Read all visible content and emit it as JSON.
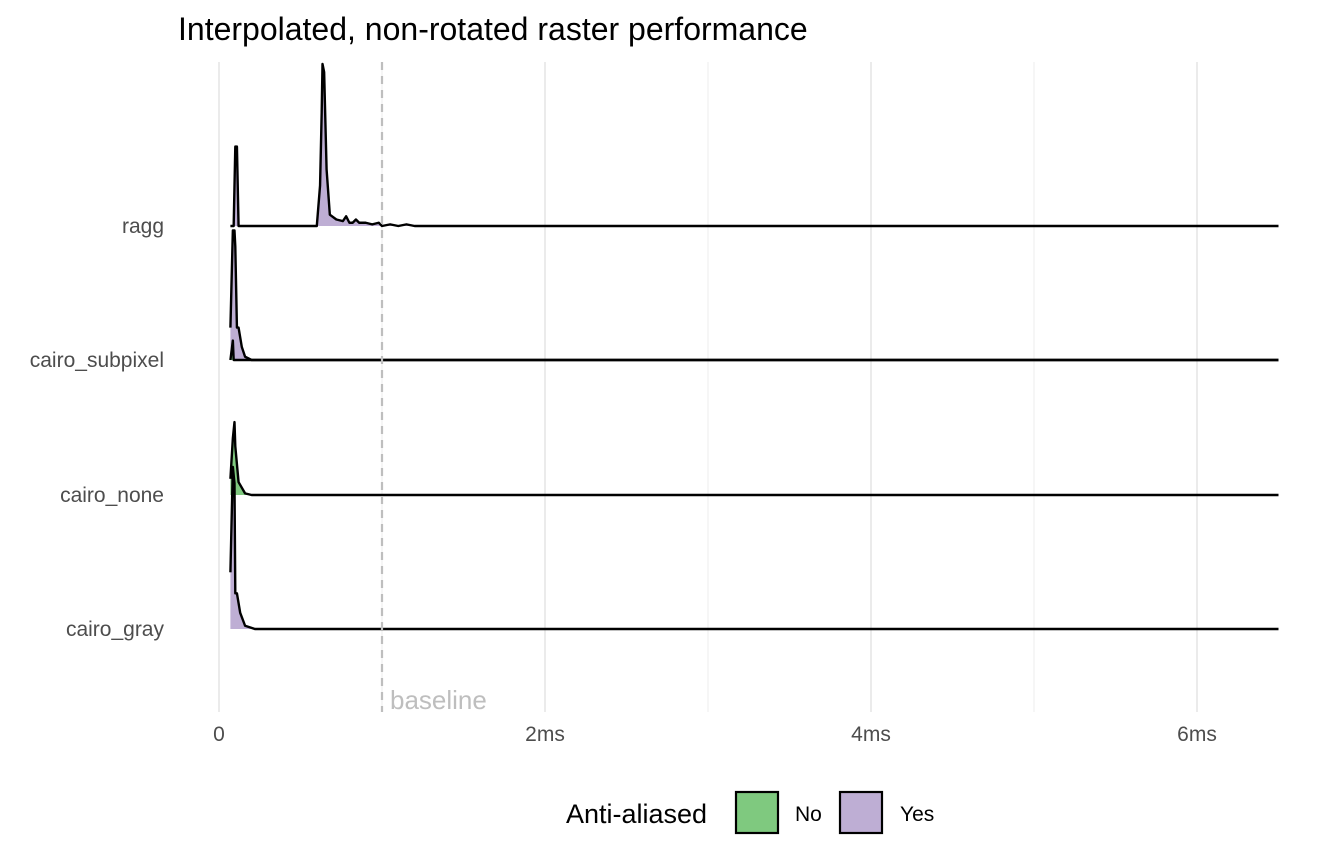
{
  "chart_data": {
    "type": "ridgeline",
    "title": "Interpolated, non-rotated raster performance",
    "xlabel": "",
    "ylabel": "",
    "x_unit": "ms",
    "xlim": [
      0,
      6.5
    ],
    "x_ticks": [
      {
        "value": 0,
        "label": "0"
      },
      {
        "value": 2,
        "label": "2ms"
      },
      {
        "value": 4,
        "label": "4ms"
      },
      {
        "value": 6,
        "label": "6ms"
      }
    ],
    "categories": [
      "cairo_gray",
      "cairo_none",
      "cairo_subpixel",
      "ragg"
    ],
    "reference_line": {
      "x": 1.0,
      "label": "baseline",
      "style": "dashed",
      "color": "#bebebe"
    },
    "legend": {
      "title": "Anti-aliased",
      "position": "bottom",
      "entries": [
        {
          "label": "No",
          "color": "#7fc97f"
        },
        {
          "label": "Yes",
          "color": "#beaed4"
        }
      ]
    },
    "series": [
      {
        "category": "ragg",
        "fill": "Yes",
        "density": [
          [
            0.07,
            0
          ],
          [
            0.09,
            0
          ],
          [
            0.1,
            0.49
          ],
          [
            0.11,
            0.49
          ],
          [
            0.12,
            0
          ],
          [
            0.6,
            0
          ],
          [
            0.62,
            0.25
          ],
          [
            0.63,
            0.7
          ],
          [
            0.635,
            1.0
          ],
          [
            0.645,
            0.95
          ],
          [
            0.66,
            0.35
          ],
          [
            0.68,
            0.07
          ],
          [
            0.72,
            0.04
          ],
          [
            0.76,
            0.03
          ],
          [
            0.78,
            0.06
          ],
          [
            0.8,
            0.02
          ],
          [
            0.82,
            0.02
          ],
          [
            0.84,
            0.04
          ],
          [
            0.86,
            0.02
          ],
          [
            0.9,
            0.02
          ],
          [
            0.94,
            0.01
          ],
          [
            0.98,
            0.02
          ],
          [
            1.0,
            0.0
          ],
          [
            1.05,
            0.01
          ],
          [
            1.1,
            0.0
          ],
          [
            1.15,
            0.01
          ],
          [
            1.2,
            0
          ],
          [
            6.5,
            0
          ]
        ]
      },
      {
        "category": "cairo_subpixel",
        "fill": "Yes",
        "density": [
          [
            0.07,
            0.2
          ],
          [
            0.085,
            0.8
          ],
          [
            0.095,
            0.8
          ],
          [
            0.1,
            0.7
          ],
          [
            0.11,
            0.2
          ],
          [
            0.12,
            0.2
          ],
          [
            0.14,
            0.08
          ],
          [
            0.16,
            0.02
          ],
          [
            0.2,
            0
          ],
          [
            6.5,
            0
          ]
        ]
      },
      {
        "category": "cairo_subpixel",
        "fill": "No",
        "density": [
          [
            0.07,
            0
          ],
          [
            0.085,
            0.12
          ],
          [
            0.09,
            0.0
          ],
          [
            0.1,
            0
          ],
          [
            6.5,
            0
          ]
        ]
      },
      {
        "category": "cairo_none",
        "fill": "No",
        "density": [
          [
            0.07,
            0.1
          ],
          [
            0.085,
            0.35
          ],
          [
            0.095,
            0.45
          ],
          [
            0.1,
            0.3
          ],
          [
            0.12,
            0.08
          ],
          [
            0.16,
            0.01
          ],
          [
            0.2,
            0
          ],
          [
            6.5,
            0
          ]
        ]
      },
      {
        "category": "cairo_gray",
        "fill": "Yes",
        "density": [
          [
            0.07,
            0.35
          ],
          [
            0.085,
            1.0
          ],
          [
            0.095,
            0.9
          ],
          [
            0.1,
            0.22
          ],
          [
            0.11,
            0.22
          ],
          [
            0.13,
            0.1
          ],
          [
            0.16,
            0.02
          ],
          [
            0.22,
            0
          ],
          [
            6.5,
            0
          ]
        ]
      }
    ]
  }
}
